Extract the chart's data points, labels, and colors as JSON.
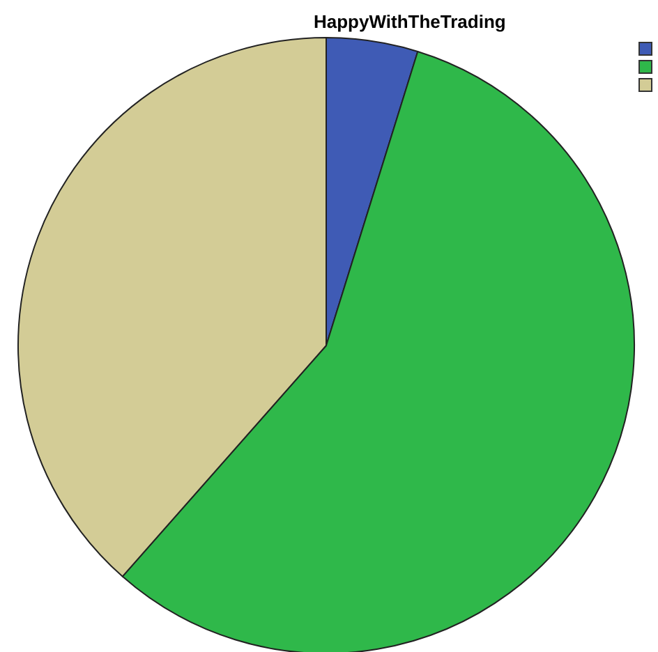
{
  "chart_data": {
    "type": "pie",
    "title": "HappyWithTheTrading",
    "categories": [
      null,
      null,
      null
    ],
    "values": [
      4.8,
      56.7,
      38.5
    ],
    "colors": [
      "#3f5bb5",
      "#2fb84a",
      "#d3cc96"
    ]
  }
}
